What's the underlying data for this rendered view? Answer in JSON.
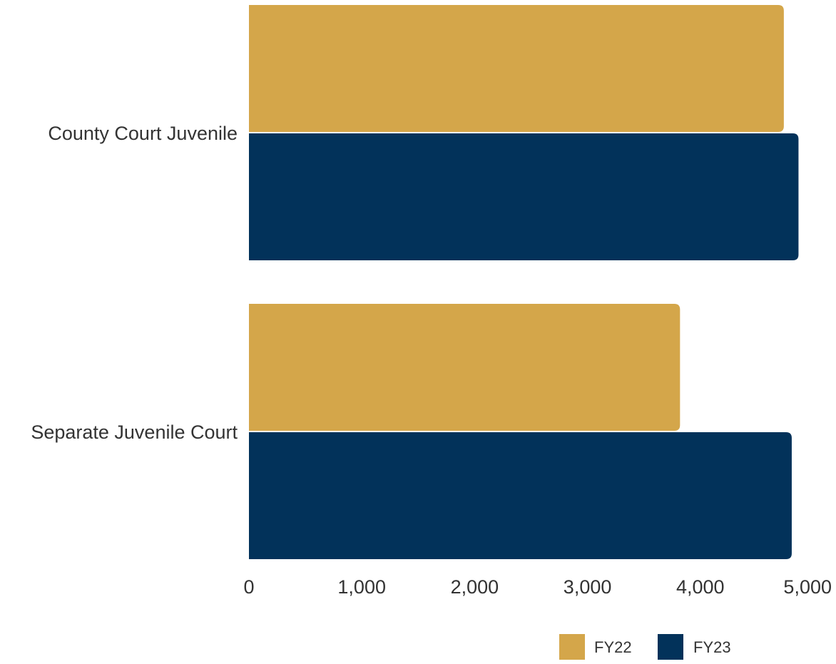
{
  "chart_data": {
    "type": "bar",
    "orientation": "horizontal",
    "categories": [
      "County Court Juvenile",
      "Separate Juvenile Court"
    ],
    "series": [
      {
        "name": "FY22",
        "color": "#D4A64A",
        "values": [
          4740,
          3820
        ]
      },
      {
        "name": "FY23",
        "color": "#02325A",
        "values": [
          4870,
          4810
        ]
      }
    ],
    "xlim": [
      0,
      5000
    ],
    "xticks": [
      0,
      1000,
      2000,
      3000,
      4000,
      5000
    ],
    "xtick_labels": [
      "0",
      "1,000",
      "2,000",
      "3,000",
      "4,000",
      "5,000"
    ],
    "grid": false,
    "legend": {
      "placement": "bottom-right",
      "entries": [
        "FY22",
        "FY23"
      ]
    }
  }
}
